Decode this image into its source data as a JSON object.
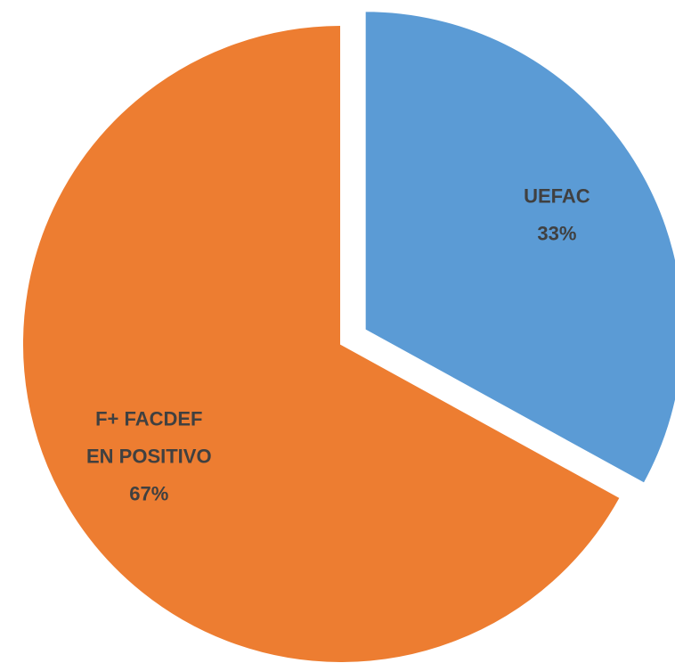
{
  "chart_data": {
    "type": "pie",
    "categories": [
      "UEFAC",
      "F+ FACDEF EN POSITIVO"
    ],
    "values": [
      33,
      67
    ],
    "value_labels": [
      "33%",
      "67%"
    ],
    "colors": [
      "#5b9bd5",
      "#ed7d31"
    ],
    "exploded": [
      0
    ]
  }
}
